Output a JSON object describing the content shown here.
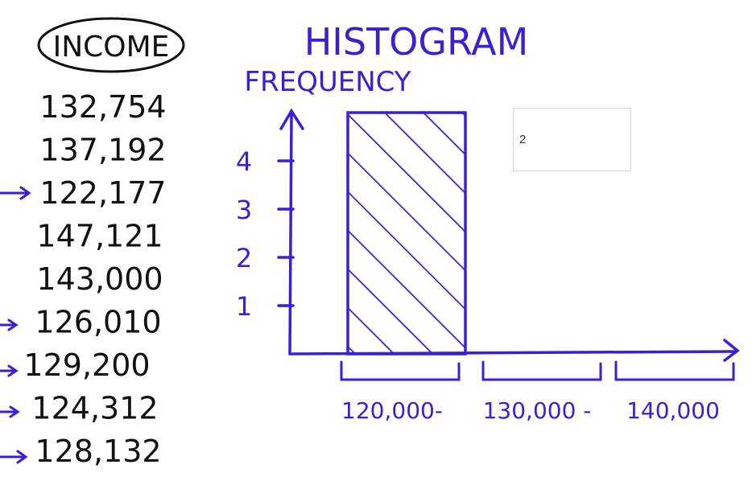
{
  "income_header": "INCOME",
  "income_values": [
    "132,754",
    "137,192",
    "122,177",
    "147,121",
    "143,000",
    "126,010",
    "129,200",
    "124,312",
    "128,132"
  ],
  "answer_input_value": "2",
  "colors": {
    "ink_blue": "#3a1fd6",
    "ink_black": "#111111"
  },
  "chart_data": {
    "type": "bar",
    "title": "HISTOGRAM",
    "ylabel": "FREQUENCY",
    "xlabel": "",
    "categories": [
      "120,000-",
      "130,000 -",
      "140,000"
    ],
    "values": [
      4,
      null,
      null
    ],
    "yticks": [
      1,
      2,
      3,
      4
    ],
    "ylim": [
      0,
      5
    ],
    "bar_fill": "hatched",
    "grid": false
  }
}
